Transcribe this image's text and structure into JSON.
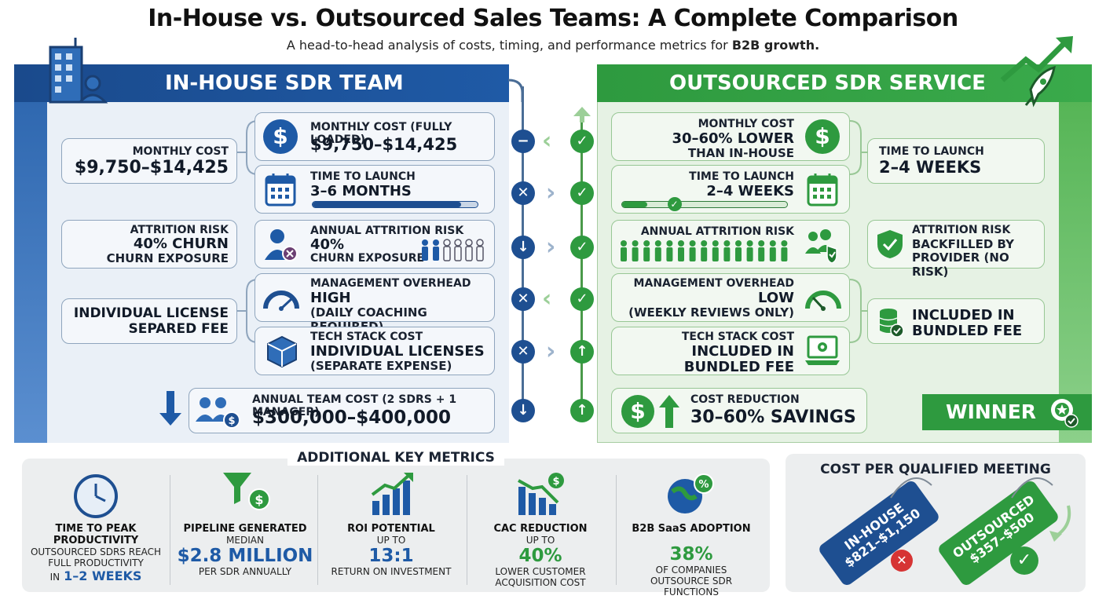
{
  "header": {
    "title": "In-House vs. Outsourced Sales Teams: A Complete Comparison",
    "subtitle": "A head-to-head analysis of costs, timing, and performance metrics for",
    "subtitle_bold": "B2B growth."
  },
  "in_house": {
    "heading": "IN-HOUSE SDR TEAM",
    "summary": [
      {
        "label": "MONTHLY COST",
        "value": "$9,750–$14,425"
      },
      {
        "label": "ATTRITION RISK",
        "line1": "40% CHURN",
        "line2": "CHURN EXPOSURE"
      },
      {
        "line1": "INDIVIDUAL LICENSE",
        "line2": "SEPARED FEE"
      }
    ],
    "cards": {
      "monthly_cost": {
        "label": "MONTHLY COST (FULLY LOADED)",
        "value": "$9,750–$14,425"
      },
      "launch": {
        "label": "TIME TO LAUNCH",
        "value": "3–6 MONTHS",
        "progress": 0.9
      },
      "attrition": {
        "label": "ANNUAL ATTRITION RISK",
        "value": "40%",
        "sub": "CHURN EXPOSURE"
      },
      "management": {
        "label": "MANAGEMENT OVERHEAD",
        "value": "HIGH",
        "sub": "(DAILY COACHING REQUIRED)"
      },
      "tech": {
        "label": "TECH STACK COST",
        "value": "INDIVIDUAL LICENSES",
        "sub": "(SEPARATE EXPENSE)"
      },
      "annual": {
        "label": "ANNUAL TEAM COST (2 SDRS + 1 MANAGER)",
        "value": "$300,000–$400,000"
      }
    }
  },
  "outsourced": {
    "heading": "OUTSOURCED SDR SERVICE",
    "summary": [
      {
        "label": "TIME TO LAUNCH",
        "value": "2–4 WEEKS"
      },
      {
        "line1": "ATTRITION RISK",
        "line2": "BACKFILLED BY",
        "line3": "PROVIDER (NO RISK)"
      },
      {
        "line1": "INCLUDED IN",
        "line2": "BUNDLED FEE"
      }
    ],
    "cards": {
      "monthly_cost": {
        "label": "MONTHLY COST",
        "line1": "30–60% LOWER",
        "line2": "THAN IN-HOUSE"
      },
      "launch": {
        "label": "TIME TO LAUNCH",
        "value": "2–4 WEEKS",
        "progress": 0.15
      },
      "attrition": {
        "label": "ANNUAL ATTRITION RISK"
      },
      "management": {
        "label": "MANAGEMENT OVERHEAD",
        "value": "LOW",
        "sub": "(WEEKLY REVIEWS ONLY)"
      },
      "tech": {
        "label": "TECH STACK COST",
        "line1": "INCLUDED IN",
        "line2": "BUNDLED FEE"
      },
      "savings": {
        "label": "COST REDUCTION",
        "value": "30–60% SAVINGS"
      }
    },
    "winner": "WINNER"
  },
  "metrics": {
    "title": "ADDITIONAL KEY METRICS",
    "items": [
      {
        "label": "TIME TO PEAK PRODUCTIVITY",
        "pre": "OUTSOURCED SDRS REACH FULL PRODUCTIVITY",
        "in": "IN",
        "value": "1–2 WEEKS"
      },
      {
        "label": "PIPELINE GENERATED",
        "pre": "MEDIAN",
        "value": "$2.8 MILLION",
        "post": "PER SDR ANNUALLY"
      },
      {
        "label": "ROI POTENTIAL",
        "pre": "UP TO",
        "value": "13:1",
        "post": "RETURN ON INVESTMENT"
      },
      {
        "label": "CAC REDUCTION",
        "pre": "UP TO",
        "value": "40%",
        "post": "LOWER CUSTOMER ACQUISITION COST"
      },
      {
        "label": "B2B SaaS ADOPTION",
        "value": "38%",
        "post": "OF COMPANIES OUTSOURCE SDR FUNCTIONS"
      }
    ]
  },
  "cost_per_meeting": {
    "title": "COST PER QUALIFIED MEETING",
    "in_house": {
      "label": "IN-HOUSE",
      "value": "$821–$1,150"
    },
    "outsourced": {
      "label": "OUTSOURCED",
      "value": "$357–$500"
    }
  },
  "colors": {
    "blue": "#1e4f91",
    "green": "#2e9a3f"
  }
}
